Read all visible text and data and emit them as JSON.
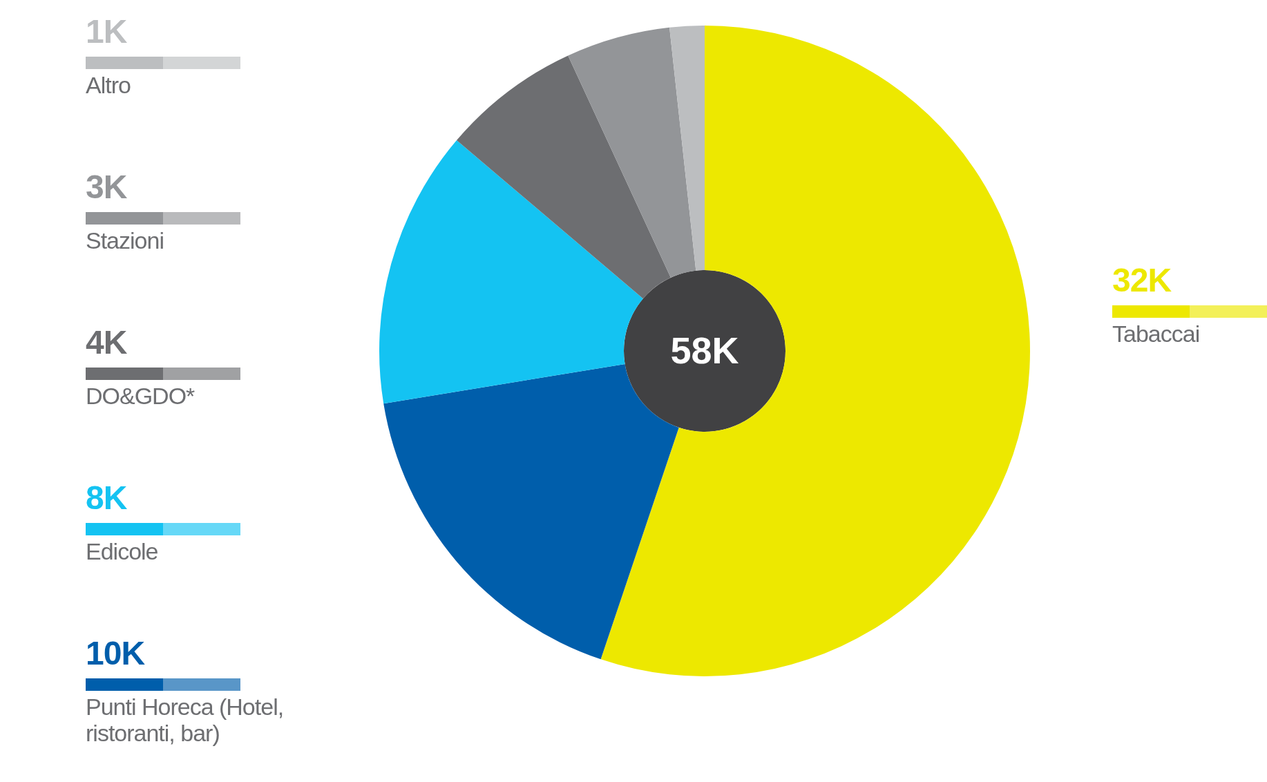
{
  "chart_data": {
    "type": "donut",
    "categories": [
      "Tabaccai",
      "Punti Horeca (Hotel, ristoranti, bar)",
      "Edicole",
      "DO&GDO*",
      "Stazioni",
      "Altro"
    ],
    "values": [
      32,
      10,
      8,
      4,
      3,
      1
    ],
    "value_labels": [
      "32K",
      "10K",
      "8K",
      "4K",
      "3K",
      "1K"
    ],
    "colors": [
      "#ede800",
      "#005eab",
      "#14c3f2",
      "#6d6e71",
      "#939598",
      "#bcbec0"
    ],
    "annotations": [
      "58K"
    ],
    "legend": "left"
  }
}
